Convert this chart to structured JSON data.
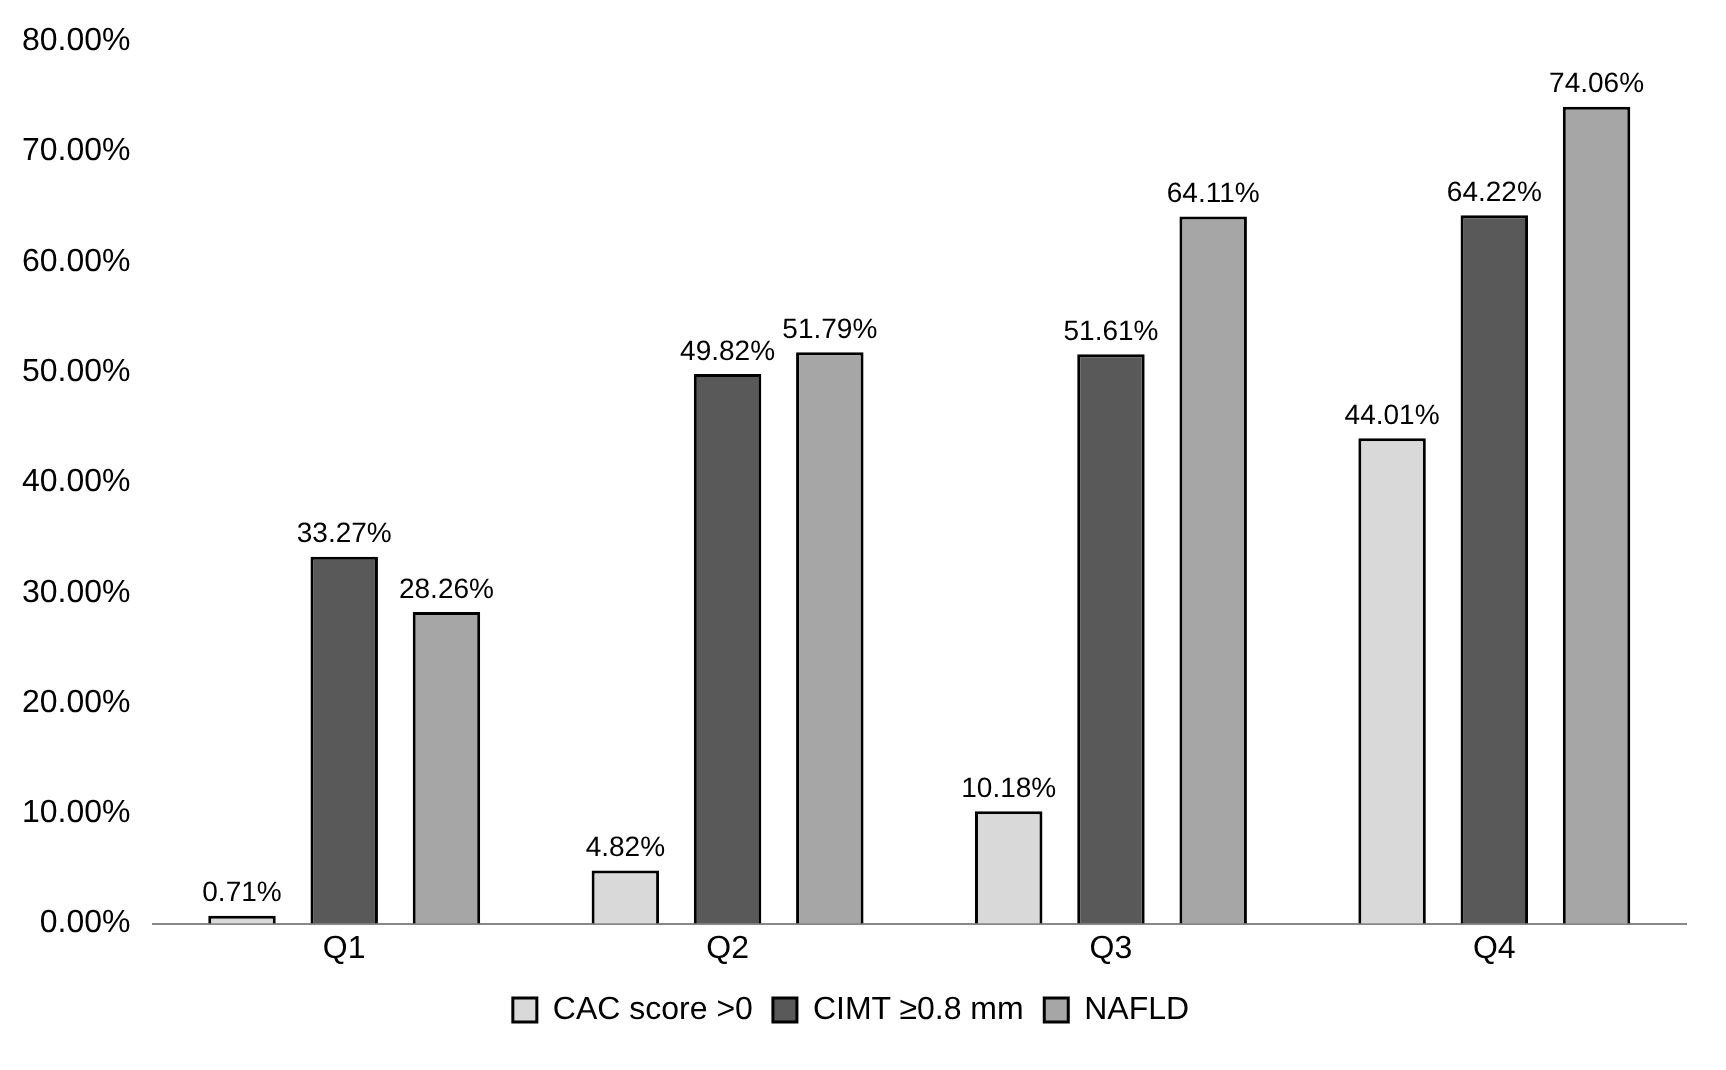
{
  "chart_data": {
    "type": "bar",
    "categories": [
      "Q1",
      "Q2",
      "Q3",
      "Q4"
    ],
    "series": [
      {
        "name": "CAC score >0",
        "color": "#d9d9d9",
        "values": [
          0.71,
          4.82,
          10.18,
          44.01
        ],
        "value_labels": [
          "0.71%",
          "4.82%",
          "10.18%",
          "44.01%"
        ]
      },
      {
        "name": "CIMT ≥0.8 mm",
        "color": "#595959",
        "values": [
          33.27,
          49.82,
          51.61,
          64.22
        ],
        "value_labels": [
          "33.27%",
          "49.82%",
          "51.61%",
          "64.22%"
        ]
      },
      {
        "name": "NAFLD",
        "color": "#a6a6a6",
        "values": [
          28.26,
          51.79,
          64.11,
          74.06
        ],
        "value_labels": [
          "28.26%",
          "51.79%",
          "64.11%",
          "74.06%"
        ]
      }
    ],
    "ylim": [
      0,
      80
    ],
    "yticks": [
      {
        "value": 0,
        "label": "0.00%"
      },
      {
        "value": 10,
        "label": "10.00%"
      },
      {
        "value": 20,
        "label": "20.00%"
      },
      {
        "value": 30,
        "label": "30.00%"
      },
      {
        "value": 40,
        "label": "40.00%"
      },
      {
        "value": 50,
        "label": "50.00%"
      },
      {
        "value": 60,
        "label": "60.00%"
      },
      {
        "value": 70,
        "label": "70.00%"
      },
      {
        "value": 80,
        "label": "80.00%"
      }
    ],
    "grid": false,
    "legend": "bottom"
  }
}
